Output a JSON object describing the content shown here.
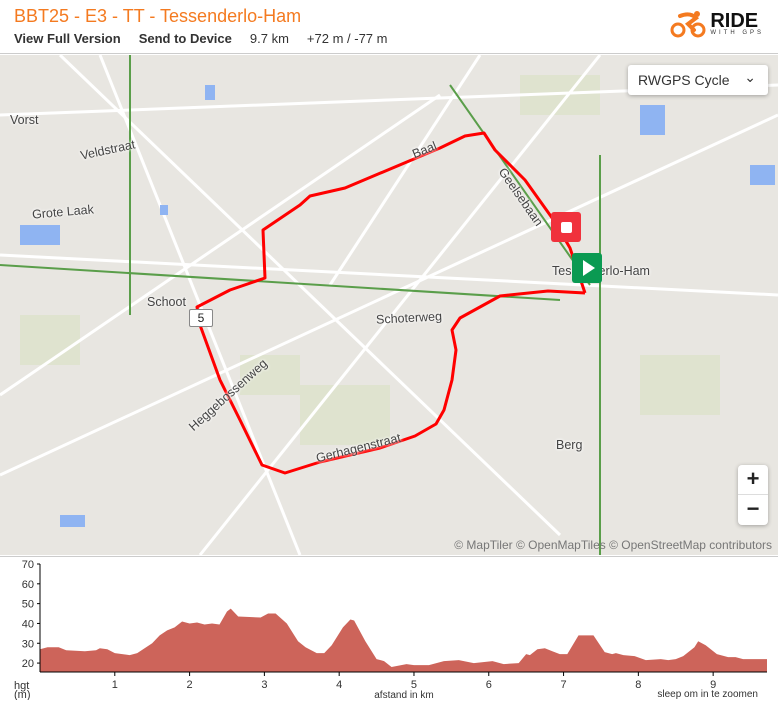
{
  "header": {
    "title": "BBT25 - E3 - TT - Tessenderlo-Ham",
    "view_full": "View Full Version",
    "send_device": "Send to Device",
    "distance": "9.7 km",
    "elevation": "+72 m / -77 m",
    "logo_main": "RIDE",
    "logo_sub": "WITH GPS",
    "brand_color": "#f47a20"
  },
  "map": {
    "layer_select": "RWGPS Cycle",
    "labels": {
      "vorst": "Vorst",
      "veldstraat": "Veldstraat",
      "grote_laak": "Grote Laak",
      "schoot": "Schoot",
      "baal": "Baal",
      "geelsebaan": "Geelsebaan",
      "town": "Tessenderlo-Ham",
      "schoterweg": "Schoterweg",
      "heggebossenweg": "Heggebossenweg",
      "gerhagenstraat": "Gerhagenstraat",
      "berg": "Berg"
    },
    "km_marker": "5",
    "zoom_in": "+",
    "zoom_out": "−",
    "attribution": "© MapTiler © OpenMapTiles © OpenStreetMap contributors",
    "route_color": "#ff0000",
    "start_color": "#0a9a52",
    "end_color": "#f0323c"
  },
  "chart_data": {
    "type": "area",
    "ylabel": "hgt (m)",
    "ylabel_line1": "hgt",
    "ylabel_line2": "(m)",
    "xlabel": "afstand in km",
    "hint": "sleep om in te zoomen",
    "xlim": [
      0,
      9.72
    ],
    "ylim": [
      15.5,
      70
    ],
    "yticks": [
      20,
      30,
      40,
      50,
      60,
      70
    ],
    "xticks": [
      1,
      2,
      3,
      4,
      5,
      6,
      7,
      8,
      9
    ],
    "color": "#cd645a",
    "x": [
      0,
      0.1,
      0.25,
      0.35,
      0.6,
      0.75,
      0.8,
      0.9,
      1,
      1.2,
      1.3,
      1.5,
      1.6,
      1.7,
      1.8,
      1.9,
      2,
      2.1,
      2.2,
      2.3,
      2.4,
      2.5,
      2.55,
      2.65,
      2.95,
      3.05,
      3.15,
      3.3,
      3.45,
      3.55,
      3.7,
      3.8,
      3.9,
      4.05,
      4.15,
      4.2,
      4.35,
      4.5,
      4.6,
      4.7,
      4.9,
      5,
      5.2,
      5.4,
      5.6,
      5.8,
      6.05,
      6.2,
      6.4,
      6.5,
      6.55,
      6.65,
      6.75,
      6.85,
      6.95,
      7.05,
      7.2,
      7.4,
      7.55,
      7.65,
      7.7,
      7.8,
      7.95,
      8.1,
      8.3,
      8.4,
      8.5,
      8.6,
      8.75,
      8.8,
      8.9,
      9.05,
      9.2,
      9.3,
      9.4,
      9.65,
      9.72
    ],
    "y": [
      27,
      28,
      28,
      26.5,
      26,
      26.5,
      27.5,
      27,
      25,
      24,
      25,
      30,
      34,
      36.5,
      38,
      41,
      40,
      40.5,
      39.5,
      40,
      39.5,
      46,
      47.5,
      43.5,
      43,
      45,
      45,
      40,
      31,
      28,
      25,
      25,
      29,
      38,
      42,
      41.5,
      31,
      22,
      21,
      18,
      19.5,
      19,
      19,
      21,
      21.5,
      20,
      21,
      19.5,
      20,
      24.5,
      24,
      27,
      27.5,
      26,
      24.5,
      24.5,
      34,
      34,
      25.5,
      24.5,
      25,
      24,
      23.5,
      21.5,
      22,
      21.5,
      22,
      23.5,
      28,
      31,
      29,
      24.5,
      23,
      23,
      22,
      22,
      22
    ]
  }
}
